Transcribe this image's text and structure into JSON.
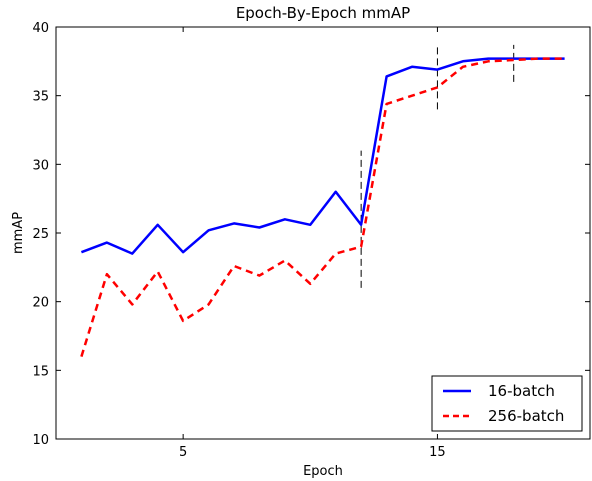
{
  "chart_data": {
    "type": "line",
    "title": "Epoch-By-Epoch mmAP",
    "xlabel": "Epoch",
    "ylabel": "mmAP",
    "xlim": [
      0,
      21
    ],
    "ylim": [
      10,
      40
    ],
    "xticks": [
      5,
      15
    ],
    "yticks": [
      10,
      15,
      20,
      25,
      30,
      35,
      40
    ],
    "grid": false,
    "legend_position": "bottom-right",
    "x": [
      1,
      2,
      3,
      4,
      5,
      6,
      7,
      8,
      9,
      10,
      11,
      12,
      13,
      14,
      15,
      16,
      17,
      18,
      19,
      20
    ],
    "series": [
      {
        "name": "16-batch",
        "color": "#0000ff",
        "style": "solid",
        "values": [
          23.6,
          24.3,
          23.5,
          25.6,
          23.6,
          25.2,
          25.7,
          25.4,
          26.0,
          25.6,
          28.0,
          25.6,
          36.4,
          37.1,
          36.9,
          37.5,
          37.7,
          37.7,
          37.7,
          37.7
        ]
      },
      {
        "name": "256-batch",
        "color": "#ff0000",
        "style": "dashed",
        "values": [
          16.0,
          22.0,
          19.8,
          22.2,
          18.6,
          19.8,
          22.6,
          21.9,
          23.0,
          21.3,
          23.5,
          24.0,
          34.4,
          35.0,
          35.6,
          37.1,
          37.5,
          37.6,
          37.7,
          37.7
        ]
      }
    ],
    "vlines": [
      {
        "x": 12,
        "y": [
          21,
          31
        ]
      },
      {
        "x": 15,
        "y": [
          34,
          38.8
        ]
      },
      {
        "x": 18,
        "y": [
          36,
          38.7
        ]
      }
    ]
  }
}
